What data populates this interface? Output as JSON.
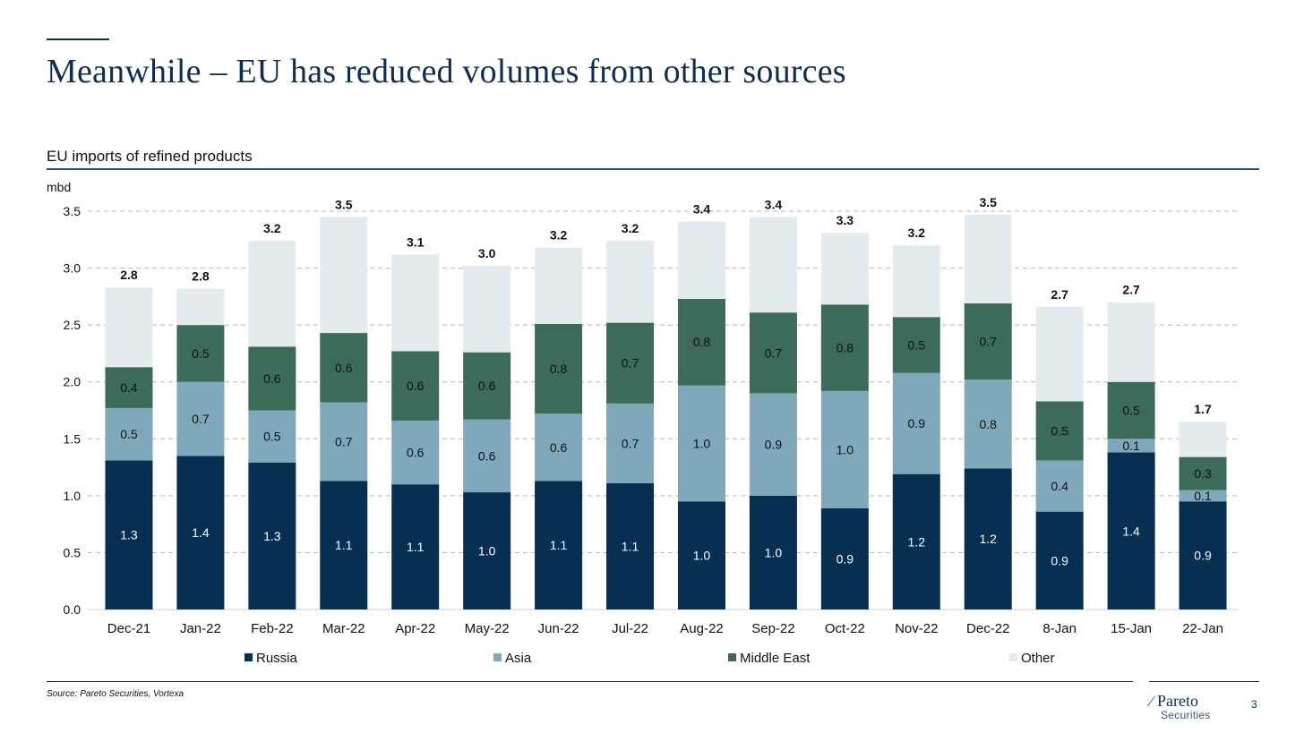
{
  "slide": {
    "title": "Meanwhile – EU has reduced volumes from other sources",
    "subtitle": "EU imports of refined products",
    "source": "Source: Pareto Securities, Vortexa",
    "page_number": "3",
    "logo": {
      "name": "Pareto",
      "sub": "Securities"
    }
  },
  "colors": {
    "Russia": "#062f52",
    "Asia": "#7fa8ba",
    "Middle East": "#3d6b5a",
    "Other": "#e4ebef",
    "title": "#0f2d52"
  },
  "chart_data": {
    "type": "bar",
    "stacked": true,
    "title": "EU imports of refined products",
    "ylabel": "mbd",
    "xlabel": "",
    "ylim": [
      0,
      3.5
    ],
    "yticks": [
      "0.0",
      "0.5",
      "1.0",
      "1.5",
      "2.0",
      "2.5",
      "3.0",
      "3.5"
    ],
    "grid": true,
    "legend_position": "bottom",
    "categories": [
      "Dec-21",
      "Jan-22",
      "Feb-22",
      "Mar-22",
      "Apr-22",
      "May-22",
      "Jun-22",
      "Jul-22",
      "Aug-22",
      "Sep-22",
      "Oct-22",
      "Nov-22",
      "Dec-22",
      "8-Jan",
      "15-Jan",
      "22-Jan"
    ],
    "series": [
      {
        "name": "Russia",
        "values": [
          1.31,
          1.35,
          1.29,
          1.13,
          1.1,
          1.03,
          1.13,
          1.11,
          0.95,
          1.0,
          0.89,
          1.19,
          1.24,
          0.86,
          1.38,
          0.95
        ],
        "labels": [
          "1.3",
          "1.4",
          "1.3",
          "1.1",
          "1.1",
          "1.0",
          "1.1",
          "1.1",
          "1.0",
          "1.0",
          "0.9",
          "1.2",
          "1.2",
          "0.9",
          "1.4",
          "0.9"
        ]
      },
      {
        "name": "Asia",
        "values": [
          0.46,
          0.65,
          0.46,
          0.69,
          0.56,
          0.64,
          0.59,
          0.7,
          1.02,
          0.9,
          1.03,
          0.89,
          0.78,
          0.45,
          0.12,
          0.1
        ],
        "labels": [
          "0.5",
          "0.7",
          "0.5",
          "0.7",
          "0.6",
          "0.6",
          "0.6",
          "0.7",
          "1.0",
          "0.9",
          "1.0",
          "0.9",
          "0.8",
          "0.4",
          "0.1",
          "0.1"
        ]
      },
      {
        "name": "Middle East",
        "values": [
          0.36,
          0.5,
          0.56,
          0.61,
          0.61,
          0.59,
          0.79,
          0.71,
          0.76,
          0.71,
          0.76,
          0.49,
          0.67,
          0.52,
          0.5,
          0.29
        ],
        "labels": [
          "0.4",
          "0.5",
          "0.6",
          "0.6",
          "0.6",
          "0.6",
          "0.8",
          "0.7",
          "0.8",
          "0.7",
          "0.8",
          "0.5",
          "0.7",
          "0.5",
          "0.5",
          "0.3"
        ]
      },
      {
        "name": "Other",
        "values": [
          0.7,
          0.32,
          0.93,
          1.02,
          0.85,
          0.76,
          0.67,
          0.72,
          0.68,
          0.84,
          0.63,
          0.63,
          0.78,
          0.83,
          0.7,
          0.31
        ],
        "labels": [
          "",
          "",
          "",
          "",
          "",
          "",
          "",
          "",
          "",
          "",
          "",
          "",
          "",
          "",
          "",
          ""
        ]
      }
    ],
    "totals": [
      2.83,
      2.82,
      3.24,
      3.45,
      3.12,
      3.02,
      3.18,
      3.24,
      3.41,
      3.45,
      3.31,
      3.2,
      3.47,
      2.66,
      2.7,
      1.65
    ],
    "total_labels": [
      "2.8",
      "2.8",
      "3.2",
      "3.5",
      "3.1",
      "3.0",
      "3.2",
      "3.2",
      "3.4",
      "3.4",
      "3.3",
      "3.2",
      "3.5",
      "2.7",
      "2.7",
      "1.7"
    ]
  }
}
